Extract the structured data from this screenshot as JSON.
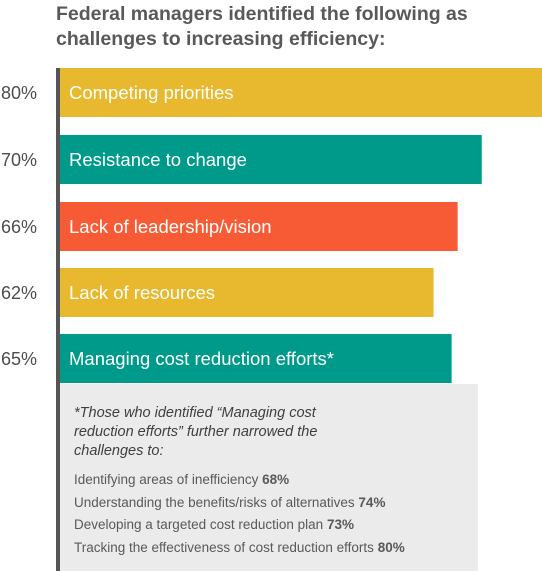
{
  "header": {
    "title": "Federal managers identified the following as challenges to increasing efficiency:"
  },
  "chart_data": {
    "type": "bar",
    "orientation": "horizontal",
    "categories": [
      "Competing priorities",
      "Resistance to change",
      "Lack of leadership/vision",
      "Lack of resources",
      "Managing cost reduction efforts*"
    ],
    "values": [
      80,
      70,
      66,
      62,
      65
    ],
    "value_labels": [
      "80%",
      "70%",
      "66%",
      "62%",
      "65%"
    ],
    "colors": [
      "#e8b82e",
      "#009a8a",
      "#f75b36",
      "#e8b82e",
      "#009a8a"
    ],
    "xlim": [
      0,
      80
    ],
    "grid": false,
    "legend": "none"
  },
  "note": {
    "heading": "*Those who identified “Managing cost reduction efforts” further narrowed the challenges to:",
    "items": [
      {
        "label": "Identifying areas of inefficiency",
        "value": "68%"
      },
      {
        "label": "Understanding the benefits/risks of alternatives",
        "value": "74%"
      },
      {
        "label": "Developing a targeted cost reduction plan",
        "value": "73%"
      },
      {
        "label": "Tracking the effectiveness of cost reduction efforts",
        "value": "80%"
      }
    ]
  }
}
